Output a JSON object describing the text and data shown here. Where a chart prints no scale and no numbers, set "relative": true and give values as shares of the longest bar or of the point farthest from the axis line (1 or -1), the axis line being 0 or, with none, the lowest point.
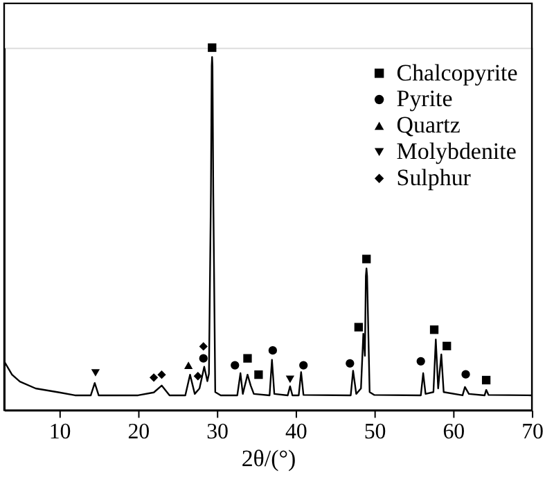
{
  "chart_data": {
    "type": "line",
    "xlabel": "2θ/(°)",
    "relative": true,
    "xlim": [
      3,
      70
    ],
    "xticks": [
      10,
      20,
      30,
      40,
      50,
      60,
      70
    ],
    "grid": false,
    "legend": "top right",
    "tick_labels": "x",
    "series": [
      {
        "type": "line",
        "color": "#000000",
        "marker": "none",
        "x": [
          3,
          4,
          5,
          7,
          10,
          12,
          14,
          14.5,
          15,
          20,
          22,
          23,
          24,
          26,
          26.6,
          27.2,
          27.8,
          28.4,
          28.8,
          29.0,
          29.25,
          29.35,
          29.4,
          29.45,
          29.55,
          29.8,
          30.5,
          32.6,
          33.0,
          33.3,
          33.9,
          34.3,
          34.7,
          36.7,
          37.0,
          37.3,
          39.0,
          39.3,
          39.6,
          40.4,
          40.7,
          41.0,
          47.0,
          47.3,
          47.7,
          48.3,
          48.6,
          48.8,
          48.92,
          49.0,
          49.08,
          49.4,
          50,
          55.9,
          56.2,
          56.5,
          57.5,
          57.8,
          58.1,
          58.5,
          58.8,
          61.2,
          61.5,
          62,
          64.0,
          64.2,
          64.5,
          70
        ],
        "values": [
          0.135,
          0.098,
          0.079,
          0.06,
          0.049,
          0.041,
          0.041,
          0.075,
          0.041,
          0.041,
          0.049,
          0.068,
          0.041,
          0.041,
          0.098,
          0.045,
          0.06,
          0.12,
          0.08,
          0.1,
          0.6,
          0.95,
          0.974,
          0.95,
          0.6,
          0.05,
          0.041,
          0.041,
          0.102,
          0.045,
          0.098,
          0.068,
          0.045,
          0.041,
          0.139,
          0.045,
          0.041,
          0.066,
          0.041,
          0.041,
          0.105,
          0.042,
          0.041,
          0.109,
          0.045,
          0.06,
          0.211,
          0.15,
          0.37,
          0.391,
          0.37,
          0.05,
          0.042,
          0.041,
          0.102,
          0.045,
          0.05,
          0.195,
          0.06,
          0.154,
          0.05,
          0.041,
          0.064,
          0.045,
          0.041,
          0.056,
          0.042,
          0.041
        ]
      },
      {
        "type": "scatter",
        "name": "Chalcopyrite",
        "color": "#000000",
        "marker": "square",
        "x": [
          29.4,
          33.9,
          35.3,
          48.0,
          49.0,
          57.6,
          59.2,
          64.2
        ],
        "values": [
          1.0,
          0.143,
          0.098,
          0.229,
          0.417,
          0.222,
          0.177,
          0.083
        ]
      },
      {
        "type": "scatter",
        "name": "Pyrite",
        "color": "#000000",
        "marker": "circle",
        "x": [
          28.3,
          32.3,
          37.1,
          41.0,
          46.9,
          55.9,
          61.6
        ],
        "values": [
          0.143,
          0.124,
          0.165,
          0.124,
          0.129,
          0.135,
          0.099
        ]
      },
      {
        "type": "scatter",
        "name": "Quartz",
        "color": "#000000",
        "marker": "triangle",
        "x": [
          26.4
        ],
        "values": [
          0.124
        ]
      },
      {
        "type": "scatter",
        "name": "Molybdenite",
        "color": "#000000",
        "marker": "triangle-down",
        "x": [
          14.6,
          39.3
        ],
        "values": [
          0.103,
          0.085
        ]
      },
      {
        "type": "scatter",
        "name": "Sulphur",
        "color": "#000000",
        "marker": "diamond",
        "x": [
          22.0,
          23.0,
          27.6,
          28.3
        ],
        "values": [
          0.09,
          0.098,
          0.094,
          0.176
        ]
      }
    ]
  }
}
